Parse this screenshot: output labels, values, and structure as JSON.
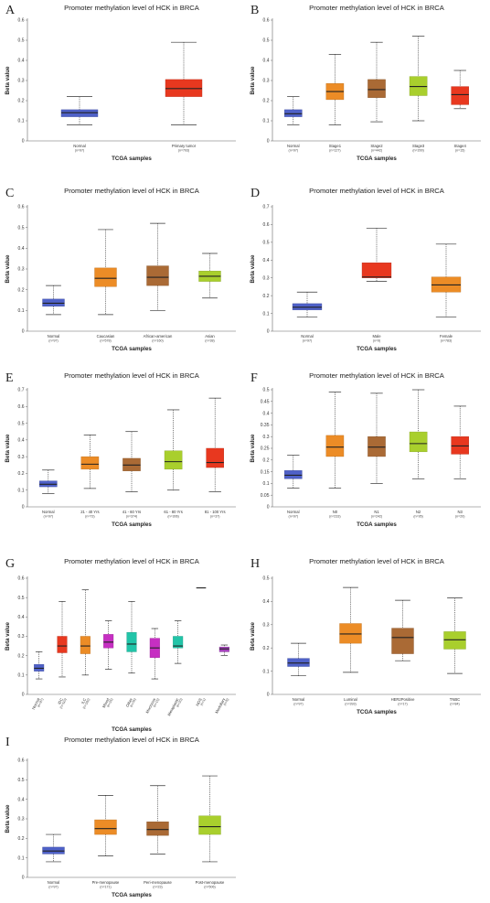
{
  "colors": {
    "normal": "#4f61c8",
    "red": "#e8381f",
    "orange": "#ec8c26",
    "brown": "#aa6a35",
    "green": "#a9cf2d",
    "magenta": "#c62fc2",
    "teal": "#22c4a8",
    "purple": "#a543bc",
    "median": "#222222"
  },
  "chart_data": [
    {
      "id": "A",
      "letter": "A",
      "type": "box",
      "title": "Promoter methylation level of HCK in BRCA",
      "xlabel": "TCGA samples",
      "ylabel": "Beta value",
      "ylim": [
        0,
        0.6
      ],
      "yticks": [
        "0",
        "0.1",
        "0.2",
        "0.3",
        "0.4",
        "0.5",
        "0.6"
      ],
      "groups": [
        {
          "label": "Normal",
          "n": "(n=97)",
          "min": 0.08,
          "q1": 0.12,
          "median": 0.14,
          "q3": 0.155,
          "max": 0.22,
          "color": "normal"
        },
        {
          "label": "Primary tumor",
          "n": "(n=793)",
          "min": 0.08,
          "q1": 0.22,
          "median": 0.26,
          "q3": 0.305,
          "max": 0.49,
          "color": "red"
        }
      ]
    },
    {
      "id": "B",
      "letter": "B",
      "type": "box",
      "title": "Promoter methylation level of HCK in BRCA",
      "xlabel": "TCGA samples",
      "ylabel": "Beta value",
      "ylim": [
        0,
        0.6
      ],
      "yticks": [
        "0",
        "0.1",
        "0.2",
        "0.3",
        "0.4",
        "0.5",
        "0.6"
      ],
      "groups": [
        {
          "label": "Normal",
          "n": "(n=97)",
          "min": 0.08,
          "q1": 0.12,
          "median": 0.135,
          "q3": 0.155,
          "max": 0.22,
          "color": "normal"
        },
        {
          "label": "Stage1",
          "n": "(n=127)",
          "min": 0.08,
          "q1": 0.205,
          "median": 0.245,
          "q3": 0.285,
          "max": 0.43,
          "color": "orange"
        },
        {
          "label": "Stage2",
          "n": "(n=442)",
          "min": 0.095,
          "q1": 0.215,
          "median": 0.255,
          "q3": 0.305,
          "max": 0.49,
          "color": "brown"
        },
        {
          "label": "Stage3",
          "n": "(n=200)",
          "min": 0.1,
          "q1": 0.225,
          "median": 0.27,
          "q3": 0.32,
          "max": 0.52,
          "color": "green"
        },
        {
          "label": "Stage4",
          "n": "(n=15)",
          "min": 0.16,
          "q1": 0.18,
          "median": 0.23,
          "q3": 0.27,
          "max": 0.35,
          "color": "red"
        }
      ]
    },
    {
      "id": "C",
      "letter": "C",
      "type": "box",
      "title": "Promoter methylation level of HCK in BRCA",
      "xlabel": "TCGA samples",
      "ylabel": "Beta value",
      "ylim": [
        0,
        0.6
      ],
      "yticks": [
        "0",
        "0.1",
        "0.2",
        "0.3",
        "0.4",
        "0.5",
        "0.6"
      ],
      "groups": [
        {
          "label": "Normal",
          "n": "(n=97)",
          "min": 0.08,
          "q1": 0.12,
          "median": 0.135,
          "q3": 0.155,
          "max": 0.22,
          "color": "normal"
        },
        {
          "label": "Caucasian",
          "n": "(n=578)",
          "min": 0.08,
          "q1": 0.215,
          "median": 0.255,
          "q3": 0.305,
          "max": 0.49,
          "color": "orange"
        },
        {
          "label": "African-american",
          "n": "(n=160)",
          "min": 0.1,
          "q1": 0.22,
          "median": 0.26,
          "q3": 0.315,
          "max": 0.52,
          "color": "brown"
        },
        {
          "label": "Asian",
          "n": "(n=38)",
          "min": 0.16,
          "q1": 0.24,
          "median": 0.265,
          "q3": 0.29,
          "max": 0.375,
          "color": "green"
        }
      ]
    },
    {
      "id": "D",
      "letter": "D",
      "type": "box",
      "title": "Promoter methylation level of HCK in BRCA",
      "xlabel": "TCGA samples",
      "ylabel": "Beta value",
      "ylim": [
        0,
        0.7
      ],
      "yticks": [
        "0",
        "0.1",
        "0.2",
        "0.3",
        "0.4",
        "0.5",
        "0.6",
        "0.7"
      ],
      "groups": [
        {
          "label": "Normal",
          "n": "(n=97)",
          "min": 0.08,
          "q1": 0.12,
          "median": 0.135,
          "q3": 0.155,
          "max": 0.22,
          "color": "normal"
        },
        {
          "label": "Male",
          "n": "(n=9)",
          "min": 0.28,
          "q1": 0.3,
          "median": 0.305,
          "q3": 0.385,
          "max": 0.58,
          "color": "red"
        },
        {
          "label": "Female",
          "n": "(n=783)",
          "min": 0.08,
          "q1": 0.22,
          "median": 0.26,
          "q3": 0.305,
          "max": 0.49,
          "color": "orange"
        }
      ]
    },
    {
      "id": "E",
      "letter": "E",
      "type": "box",
      "title": "Promoter methylation level of HCK in BRCA",
      "xlabel": "TCGA samples",
      "ylabel": "Beta value",
      "ylim": [
        0,
        0.7
      ],
      "yticks": [
        "0",
        "0.1",
        "0.2",
        "0.3",
        "0.4",
        "0.5",
        "0.6",
        "0.7"
      ],
      "groups": [
        {
          "label": "Normal",
          "n": "(n=97)",
          "min": 0.08,
          "q1": 0.12,
          "median": 0.135,
          "q3": 0.155,
          "max": 0.22,
          "color": "normal"
        },
        {
          "label": "21 - 40 Yrs",
          "n": "(n=73)",
          "min": 0.11,
          "q1": 0.225,
          "median": 0.255,
          "q3": 0.3,
          "max": 0.43,
          "color": "orange"
        },
        {
          "label": "41 - 60 Yrs",
          "n": "(n=374)",
          "min": 0.09,
          "q1": 0.215,
          "median": 0.25,
          "q3": 0.29,
          "max": 0.45,
          "color": "brown"
        },
        {
          "label": "61 - 80 Yrs",
          "n": "(n=306)",
          "min": 0.1,
          "q1": 0.225,
          "median": 0.27,
          "q3": 0.335,
          "max": 0.58,
          "color": "green"
        },
        {
          "label": "81 - 100 Yrs",
          "n": "(n=37)",
          "min": 0.09,
          "q1": 0.235,
          "median": 0.265,
          "q3": 0.35,
          "max": 0.65,
          "color": "red"
        }
      ]
    },
    {
      "id": "F",
      "letter": "F",
      "type": "box",
      "title": "Promoter methylation level of HCK in BRCA",
      "xlabel": "TCGA samples",
      "ylabel": "Beta value",
      "ylim": [
        0,
        0.5
      ],
      "yticks": [
        "0",
        "0.05",
        "0.1",
        "0.15",
        "0.2",
        "0.25",
        "0.3",
        "0.35",
        "0.4",
        "0.45",
        "0.5"
      ],
      "groups": [
        {
          "label": "Normal",
          "n": "(n=97)",
          "min": 0.08,
          "q1": 0.12,
          "median": 0.135,
          "q3": 0.155,
          "max": 0.22,
          "color": "normal"
        },
        {
          "label": "N0",
          "n": "(n=233)",
          "min": 0.08,
          "q1": 0.215,
          "median": 0.255,
          "q3": 0.305,
          "max": 0.49,
          "color": "orange"
        },
        {
          "label": "N1",
          "n": "(n=242)",
          "min": 0.1,
          "q1": 0.215,
          "median": 0.255,
          "q3": 0.3,
          "max": 0.485,
          "color": "brown"
        },
        {
          "label": "N2",
          "n": "(n=95)",
          "min": 0.12,
          "q1": 0.235,
          "median": 0.27,
          "q3": 0.32,
          "max": 0.5,
          "color": "green"
        },
        {
          "label": "N3",
          "n": "(n=20)",
          "min": 0.12,
          "q1": 0.225,
          "median": 0.26,
          "q3": 0.3,
          "max": 0.43,
          "color": "red"
        }
      ]
    },
    {
      "id": "G",
      "letter": "G",
      "type": "box",
      "title": "Promoter methylation level of HCK in BRCA",
      "xlabel": "TCGA samples",
      "ylabel": "Beta value",
      "ylim": [
        0,
        0.6
      ],
      "yticks": [
        "0",
        "0.1",
        "0.2",
        "0.3",
        "0.4",
        "0.5",
        "0.6"
      ],
      "rotated_labels": true,
      "groups": [
        {
          "label": "Normal",
          "n": "(n=97)",
          "min": 0.08,
          "q1": 0.12,
          "median": 0.135,
          "q3": 0.155,
          "max": 0.22,
          "color": "normal"
        },
        {
          "label": "IDC",
          "n": "(n=110)",
          "min": 0.09,
          "q1": 0.215,
          "median": 0.25,
          "q3": 0.3,
          "max": 0.48,
          "color": "red"
        },
        {
          "label": "ILC",
          "n": "(n=182)",
          "min": 0.1,
          "q1": 0.21,
          "median": 0.25,
          "q3": 0.3,
          "max": 0.54,
          "color": "orange"
        },
        {
          "label": "Mixed",
          "n": "(n=26)",
          "min": 0.13,
          "q1": 0.24,
          "median": 0.27,
          "q3": 0.31,
          "max": 0.38,
          "color": "magenta"
        },
        {
          "label": "Other",
          "n": "(n=35)",
          "min": 0.11,
          "q1": 0.22,
          "median": 0.26,
          "q3": 0.32,
          "max": 0.48,
          "color": "teal"
        },
        {
          "label": "Mucinous",
          "n": "(n=15)",
          "min": 0.08,
          "q1": 0.19,
          "median": 0.24,
          "q3": 0.29,
          "max": 0.34,
          "color": "magenta"
        },
        {
          "label": "Metaplastic",
          "n": "(n=20)",
          "min": 0.16,
          "q1": 0.24,
          "median": 0.25,
          "q3": 0.3,
          "max": 0.38,
          "color": "teal"
        },
        {
          "label": "NOS",
          "n": "(n=1)",
          "min": 0.55,
          "q1": 0.55,
          "median": 0.55,
          "q3": 0.55,
          "max": 0.55,
          "color": "red"
        },
        {
          "label": "Medullary",
          "n": "(n=6)",
          "min": 0.2,
          "q1": 0.22,
          "median": 0.235,
          "q3": 0.245,
          "max": 0.255,
          "color": "purple"
        }
      ]
    },
    {
      "id": "H",
      "letter": "H",
      "type": "box",
      "title": "Promoter methylation level of HCK in BRCA",
      "xlabel": "TCGA samples",
      "ylabel": "Beta value",
      "ylim": [
        0,
        0.5
      ],
      "yticks": [
        "0",
        "0.1",
        "0.2",
        "0.3",
        "0.4",
        "0.5"
      ],
      "groups": [
        {
          "label": "Normal",
          "n": "(n=97)",
          "min": 0.08,
          "q1": 0.12,
          "median": 0.135,
          "q3": 0.155,
          "max": 0.22,
          "color": "normal"
        },
        {
          "label": "Luminal",
          "n": "(n=393)",
          "min": 0.095,
          "q1": 0.22,
          "median": 0.26,
          "q3": 0.305,
          "max": 0.46,
          "color": "orange"
        },
        {
          "label": "HER2Positive",
          "n": "(n=17)",
          "min": 0.145,
          "q1": 0.175,
          "median": 0.245,
          "q3": 0.285,
          "max": 0.405,
          "color": "brown"
        },
        {
          "label": "TNBC",
          "n": "(n=84)",
          "min": 0.09,
          "q1": 0.195,
          "median": 0.235,
          "q3": 0.27,
          "max": 0.415,
          "color": "green"
        }
      ]
    },
    {
      "id": "I",
      "letter": "I",
      "type": "box",
      "title": "Promoter methylation level of HCK in BRCA",
      "xlabel": "TCGA samples",
      "ylabel": "Beta value",
      "ylim": [
        0,
        0.6
      ],
      "yticks": [
        "0",
        "0.1",
        "0.2",
        "0.3",
        "0.4",
        "0.5",
        "0.6"
      ],
      "groups": [
        {
          "label": "Normal",
          "n": "(n=97)",
          "min": 0.08,
          "q1": 0.12,
          "median": 0.135,
          "q3": 0.155,
          "max": 0.22,
          "color": "normal"
        },
        {
          "label": "Pre-menopause",
          "n": "(n=171)",
          "min": 0.11,
          "q1": 0.22,
          "median": 0.25,
          "q3": 0.295,
          "max": 0.42,
          "color": "orange"
        },
        {
          "label": "Peri-menopause",
          "n": "(n=23)",
          "min": 0.12,
          "q1": 0.215,
          "median": 0.245,
          "q3": 0.285,
          "max": 0.47,
          "color": "brown"
        },
        {
          "label": "Post-menopause",
          "n": "(n=506)",
          "min": 0.08,
          "q1": 0.22,
          "median": 0.26,
          "q3": 0.315,
          "max": 0.52,
          "color": "green"
        }
      ]
    }
  ]
}
